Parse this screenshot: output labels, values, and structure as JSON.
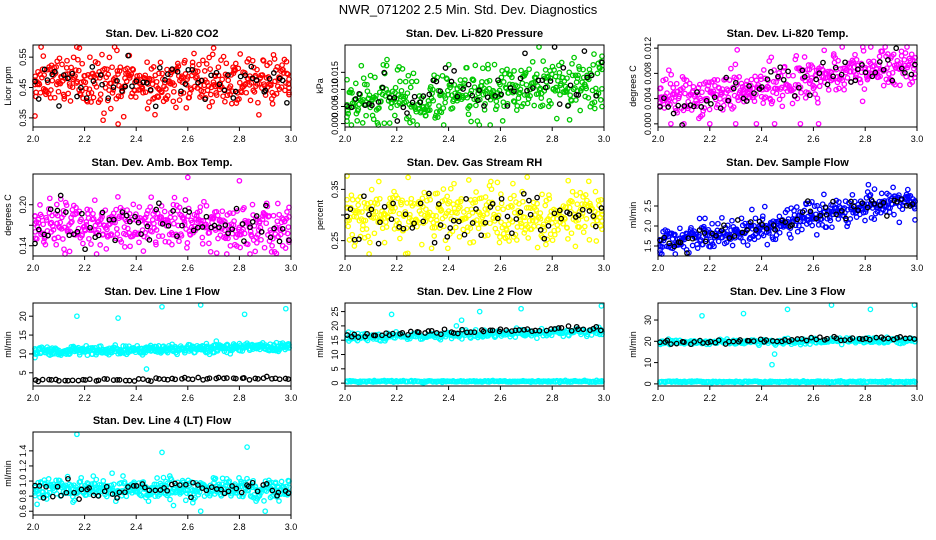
{
  "page_title": "NWR_071202  2.5 Min. Std. Dev. Diagnostics",
  "colors": {
    "red": "#ff0000",
    "green": "#00c800",
    "magenta": "#ff00ff",
    "yellow": "#ffff00",
    "blue": "#0000ff",
    "cyan": "#00ffff",
    "black": "#000000"
  },
  "chart_data": [
    {
      "type": "scatter",
      "title": "Stan. Dev. Li-820 CO2",
      "xlabel": "",
      "ylabel": "Licor ppm",
      "xlim": [
        2.0,
        3.0
      ],
      "ylim": [
        0.32,
        0.59
      ],
      "xticks": [
        "2.0",
        "2.2",
        "2.4",
        "2.6",
        "2.8",
        "3.0"
      ],
      "yticks": [
        0.35,
        0.45,
        0.55
      ],
      "ytick_labels": [
        "0.35",
        "0.45",
        "0.55"
      ],
      "grid": false,
      "series": [
        {
          "name": "main",
          "color": "red",
          "n": 420,
          "center": [
            0.47,
            0.47
          ],
          "spread": 0.045,
          "outliers": [
            [
              2.33,
              0.33
            ],
            [
              2.18,
              0.58
            ],
            [
              2.7,
              0.58
            ]
          ]
        },
        {
          "name": "black",
          "color": "black",
          "n": 60,
          "center": [
            0.47,
            0.47
          ],
          "spread": 0.04
        }
      ]
    },
    {
      "type": "scatter",
      "title": "Stan. Dev. Li-820 Pressure",
      "xlabel": "",
      "ylabel": "kPa",
      "xlim": [
        2.0,
        3.0
      ],
      "ylim": [
        -0.001,
        0.023
      ],
      "xticks": [
        "2.0",
        "2.2",
        "2.4",
        "2.6",
        "2.8",
        "3.0"
      ],
      "yticks": [
        0.0,
        0.005,
        0.01,
        0.015
      ],
      "ytick_labels": [
        "0.000",
        "0.005",
        "0.010",
        "0.015"
      ],
      "grid": false,
      "series": [
        {
          "name": "main",
          "color": "green",
          "n": 420,
          "center": [
            0.006,
            0.012
          ],
          "spread": 0.004,
          "outliers": []
        },
        {
          "name": "black",
          "color": "black",
          "n": 60,
          "center": [
            0.006,
            0.012
          ],
          "spread": 0.004
        }
      ]
    },
    {
      "type": "scatter",
      "title": "Stan. Dev. Li-820 Temp.",
      "xlabel": "",
      "ylabel": "degrees C",
      "xlim": [
        2.0,
        3.0
      ],
      "ylim": [
        -0.0005,
        0.0125
      ],
      "xticks": [
        "2.0",
        "2.2",
        "2.4",
        "2.6",
        "2.8",
        "3.0"
      ],
      "yticks": [
        0.0,
        0.004,
        0.008,
        0.012
      ],
      "ytick_labels": [
        "0.000",
        "0.004",
        "0.008",
        "0.012"
      ],
      "grid": false,
      "series": [
        {
          "name": "main",
          "color": "magenta",
          "n": 420,
          "center": [
            0.004,
            0.009
          ],
          "spread": 0.0018,
          "outliers": [
            [
              2.05,
              0.0
            ],
            [
              2.1,
              0.0
            ],
            [
              2.2,
              0.0
            ],
            [
              2.3,
              0.0
            ],
            [
              2.38,
              0.0
            ],
            [
              2.45,
              0.0
            ],
            [
              2.55,
              0.0
            ],
            [
              2.62,
              0.0
            ]
          ]
        },
        {
          "name": "black",
          "color": "black",
          "n": 60,
          "center": [
            0.004,
            0.009
          ],
          "spread": 0.0015
        }
      ]
    },
    {
      "type": "scatter",
      "title": "Stan. Dev. Amb. Box Temp.",
      "xlabel": "",
      "ylabel": "degrees C",
      "xlim": [
        2.0,
        3.0
      ],
      "ylim": [
        0.125,
        0.245
      ],
      "xticks": [
        "2.0",
        "2.2",
        "2.4",
        "2.6",
        "2.8",
        "3.0"
      ],
      "yticks": [
        0.14,
        0.17,
        0.2
      ],
      "ytick_labels": [
        "0.14",
        "",
        "0.20"
      ],
      "grid": false,
      "series": [
        {
          "name": "main",
          "color": "magenta",
          "n": 420,
          "center": [
            0.17,
            0.17
          ],
          "spread": 0.018,
          "outliers": [
            [
              2.6,
              0.24
            ],
            [
              2.8,
              0.235
            ],
            [
              2.12,
              0.135
            ]
          ]
        },
        {
          "name": "black",
          "color": "black",
          "n": 60,
          "center": [
            0.17,
            0.17
          ],
          "spread": 0.015
        }
      ]
    },
    {
      "type": "scatter",
      "title": "Stan. Dev. Gas Stream RH",
      "xlabel": "",
      "ylabel": "percent",
      "xlim": [
        2.0,
        3.0
      ],
      "ylim": [
        0.22,
        0.38
      ],
      "xticks": [
        "2.0",
        "2.2",
        "2.4",
        "2.6",
        "2.8",
        "3.0"
      ],
      "yticks": [
        0.25,
        0.3,
        0.35
      ],
      "ytick_labels": [
        "0.25",
        "",
        "0.35"
      ],
      "grid": false,
      "series": [
        {
          "name": "main",
          "color": "yellow",
          "n": 420,
          "center": [
            0.3,
            0.3
          ],
          "spread": 0.028,
          "outliers": []
        },
        {
          "name": "black",
          "color": "black",
          "n": 60,
          "center": [
            0.3,
            0.3
          ],
          "spread": 0.025
        }
      ]
    },
    {
      "type": "scatter",
      "title": "Stan. Dev. Sample Flow",
      "xlabel": "",
      "ylabel": "ml/min",
      "xlim": [
        2.0,
        3.0
      ],
      "ylim": [
        1.25,
        3.3
      ],
      "xticks": [
        "2.0",
        "2.2",
        "2.4",
        "2.6",
        "2.8",
        "3.0"
      ],
      "yticks": [
        1.5,
        2.0,
        2.5
      ],
      "ytick_labels": [
        "1.5",
        "2.0",
        "2.5"
      ],
      "grid": false,
      "series": [
        {
          "name": "main",
          "color": "blue",
          "n": 420,
          "center": [
            1.6,
            2.6
          ],
          "spread": 0.18,
          "outliers": []
        },
        {
          "name": "black",
          "color": "black",
          "n": 60,
          "center": [
            1.6,
            2.6
          ],
          "spread": 0.15
        }
      ]
    },
    {
      "type": "scatter",
      "title": "Stan. Dev. Line 1 Flow",
      "xlabel": "",
      "ylabel": "ml/min",
      "xlim": [
        2.0,
        3.0
      ],
      "ylim": [
        1.5,
        23.5
      ],
      "xticks": [
        "2.0",
        "2.2",
        "2.4",
        "2.6",
        "2.8",
        "3.0"
      ],
      "yticks": [
        5,
        10,
        15,
        20
      ],
      "ytick_labels": [
        "5",
        "10",
        "15",
        "20"
      ],
      "grid": false,
      "series": [
        {
          "name": "main",
          "color": "cyan",
          "n": 420,
          "center": [
            10.7,
            11.7
          ],
          "spread": 0.6,
          "outliers": [
            [
              2.17,
              20.0
            ],
            [
              2.33,
              19.5
            ],
            [
              2.5,
              22.5
            ],
            [
              2.65,
              23.0
            ],
            [
              2.82,
              20.5
            ],
            [
              2.98,
              22.0
            ],
            [
              2.44,
              6.0
            ]
          ]
        },
        {
          "name": "black",
          "color": "black",
          "n": 60,
          "center": [
            3.0,
            3.6
          ],
          "spread": 0.2
        }
      ]
    },
    {
      "type": "scatter",
      "title": "Stan. Dev. Line 2 Flow",
      "xlabel": "",
      "ylabel": "ml/min",
      "xlim": [
        2.0,
        3.0
      ],
      "ylim": [
        -1.0,
        28.0
      ],
      "xticks": [
        "2.0",
        "2.2",
        "2.4",
        "2.6",
        "2.8",
        "3.0"
      ],
      "yticks": [
        0,
        5,
        10,
        15,
        20,
        25
      ],
      "ytick_labels": [
        "0",
        "5",
        "10",
        "15",
        "20",
        "25"
      ],
      "grid": false,
      "series": [
        {
          "name": "main",
          "color": "cyan",
          "n": 280,
          "center": [
            16.0,
            18.0
          ],
          "spread": 0.7,
          "outliers": [
            [
              2.18,
              24.0
            ],
            [
              2.45,
              22.0
            ],
            [
              2.52,
              25.0
            ],
            [
              2.68,
              26.0
            ],
            [
              2.99,
              27.0
            ],
            [
              2.43,
              20.0
            ]
          ]
        },
        {
          "name": "low",
          "color": "cyan",
          "n": 200,
          "center": [
            0.6,
            0.6
          ],
          "spread": 0.15
        },
        {
          "name": "black",
          "color": "black",
          "n": 60,
          "center": [
            17.0,
            19.0
          ],
          "spread": 0.5
        }
      ]
    },
    {
      "type": "scatter",
      "title": "Stan. Dev. Line 3 Flow",
      "xlabel": "",
      "ylabel": "ml/min",
      "xlim": [
        2.0,
        3.0
      ],
      "ylim": [
        -1.0,
        38.0
      ],
      "xticks": [
        "2.0",
        "2.2",
        "2.4",
        "2.6",
        "2.8",
        "3.0"
      ],
      "yticks": [
        0,
        10,
        20,
        30
      ],
      "ytick_labels": [
        "0",
        "10",
        "20",
        "30"
      ],
      "grid": false,
      "series": [
        {
          "name": "main",
          "color": "cyan",
          "n": 280,
          "center": [
            19.5,
            20.5
          ],
          "spread": 0.6,
          "outliers": [
            [
              2.17,
              32.0
            ],
            [
              2.33,
              33.0
            ],
            [
              2.5,
              35.0
            ],
            [
              2.67,
              37.0
            ],
            [
              2.82,
              35.0
            ],
            [
              2.99,
              37.0
            ],
            [
              2.45,
              14.0
            ],
            [
              2.44,
              9.0
            ]
          ]
        },
        {
          "name": "low",
          "color": "cyan",
          "n": 200,
          "center": [
            1.0,
            1.0
          ],
          "spread": 0.2
        },
        {
          "name": "black",
          "color": "black",
          "n": 60,
          "center": [
            19.5,
            21.5
          ],
          "spread": 0.5
        }
      ]
    },
    {
      "type": "scatter",
      "title": "Stan. Dev. Line 4 (LT) Flow",
      "xlabel": "",
      "ylabel": "ml/min",
      "xlim": [
        2.0,
        3.0
      ],
      "ylim": [
        0.55,
        1.65
      ],
      "xticks": [
        "2.0",
        "2.2",
        "2.4",
        "2.6",
        "2.8",
        "3.0"
      ],
      "yticks": [
        0.6,
        0.8,
        1.0,
        1.2,
        1.4
      ],
      "ytick_labels": [
        "0.6",
        "0.8",
        "1.0",
        "1.2",
        "1.4"
      ],
      "grid": false,
      "series": [
        {
          "name": "main",
          "color": "cyan",
          "n": 420,
          "center": [
            0.9,
            0.9
          ],
          "spread": 0.07,
          "outliers": [
            [
              2.17,
              1.62
            ],
            [
              2.83,
              1.45
            ],
            [
              2.5,
              1.38
            ],
            [
              2.65,
              0.6
            ],
            [
              2.9,
              0.6
            ]
          ]
        },
        {
          "name": "black",
          "color": "black",
          "n": 60,
          "center": [
            0.88,
            0.88
          ],
          "spread": 0.06
        }
      ]
    }
  ]
}
